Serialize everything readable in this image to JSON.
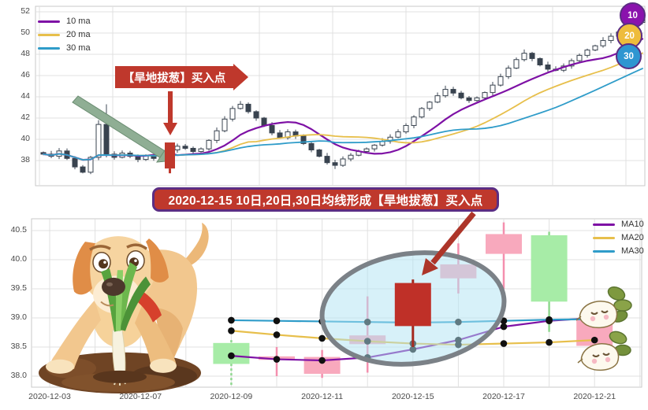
{
  "banner": {
    "text": "2020-12-15 10日,20日,30日均线形成【旱地拔葱】买入点"
  },
  "colors": {
    "ma10": "#7e11a5",
    "ma20": "#e7bf4b",
    "ma30": "#2f9cc9",
    "highlight_red": "#bf382c",
    "banner_border": "#5b2d83",
    "candle_up_pink": "#f8a9bd",
    "candle_down_green": "#a7eca7",
    "ellipse_stroke": "#7b8187",
    "green_arrow": "#8fae94"
  },
  "icons": {
    "dog_illustration": "dog-pulling-scallion-illustration",
    "radish_illustration": "radish-characters-illustration"
  },
  "chart_data": [
    {
      "type": "candlestick",
      "title": "",
      "legend_labels": [
        "10 ma",
        "20 ma",
        "30 ma"
      ],
      "y_ticks": [
        52,
        50,
        48,
        46,
        44,
        42,
        40,
        38
      ],
      "ylim": [
        35.7,
        52.4
      ],
      "grid": true,
      "annotation_text": "【旱地拔葱】买入点",
      "buy_point_index": 16,
      "ma_windows": [
        10,
        20,
        30
      ],
      "closes": [
        38.6,
        38.4,
        38.9,
        38.2,
        37.4,
        36.9,
        38.3,
        41.4,
        38.6,
        38.3,
        38.7,
        38.4,
        38.1,
        38.45,
        38.2,
        37.95,
        39.0,
        39.35,
        39.15,
        38.85,
        39.1,
        39.9,
        40.8,
        41.9,
        42.9,
        43.3,
        42.6,
        42.0,
        41.3,
        40.6,
        40.15,
        40.7,
        40.3,
        39.6,
        39.0,
        38.4,
        37.8,
        37.55,
        38.15,
        38.5,
        38.85,
        39.1,
        39.45,
        39.8,
        40.2,
        40.7,
        41.3,
        42.1,
        42.9,
        43.5,
        44.1,
        44.7,
        44.35,
        43.9,
        43.65,
        43.9,
        44.4,
        45.1,
        45.9,
        46.7,
        47.5,
        48.1,
        47.6,
        47.0,
        46.6,
        46.5,
        46.9,
        47.4,
        47.9,
        48.4,
        48.8,
        49.3,
        49.7,
        50.1,
        50.5,
        51.0,
        51.4
      ],
      "wick_overrides": {
        "7": {
          "h": 41.8
        },
        "8": {
          "h": 43.3,
          "l": 38.3
        },
        "16": {
          "l": 37.4
        },
        "25": {
          "h": 43.6
        },
        "37": {
          "l": 37.2
        },
        "51": {
          "h": 45.05
        },
        "61": {
          "h": 48.45
        }
      },
      "badges": [
        {
          "label": "10",
          "color": "#8a12ad"
        },
        {
          "label": "20",
          "color": "#eebc3c"
        },
        {
          "label": "30",
          "color": "#2e96d1"
        }
      ]
    },
    {
      "type": "candlestick",
      "title": "",
      "legend_labels": [
        "MA10",
        "MA20",
        "MA30"
      ],
      "y_ticks": [
        "40.5",
        "40.0",
        "39.5",
        "39.0",
        "38.5",
        "38.0"
      ],
      "ylim": [
        37.8,
        40.7
      ],
      "grid": true,
      "x_all_days": [
        "2020-12-03",
        "2020-12-04",
        "2020-12-07",
        "2020-12-08",
        "2020-12-09",
        "2020-12-10",
        "2020-12-11",
        "2020-12-14",
        "2020-12-15",
        "2020-12-16",
        "2020-12-17",
        "2020-12-18",
        "2020-12-21",
        "2020-12-22"
      ],
      "x_tick_labels": [
        "2020-12-03",
        "2020-12-07",
        "2020-12-09",
        "2020-12-11",
        "2020-12-15",
        "2020-12-17",
        "2020-12-21"
      ],
      "x_tick_day_indexes": [
        0,
        2,
        4,
        6,
        8,
        10,
        12
      ],
      "candles_start_day_index": 4,
      "candles": [
        {
          "date": "2020-12-09",
          "o": 38.57,
          "h": 38.62,
          "l": 37.85,
          "c": 38.21,
          "dir": "down"
        },
        {
          "date": "2020-12-10",
          "o": 38.28,
          "h": 38.5,
          "l": 38.0,
          "c": 38.34,
          "dir": "up"
        },
        {
          "date": "2020-12-11",
          "o": 38.04,
          "h": 38.45,
          "l": 37.97,
          "c": 38.33,
          "dir": "up"
        },
        {
          "date": "2020-12-14",
          "o": 38.55,
          "h": 39.37,
          "l": 38.06,
          "c": 38.7,
          "dir": "up"
        },
        {
          "date": "2020-12-15",
          "o": 38.86,
          "h": 39.66,
          "l": 38.5,
          "c": 39.6,
          "dir": "highlight"
        },
        {
          "date": "2020-12-16",
          "o": 39.68,
          "h": 40.28,
          "l": 39.42,
          "c": 39.92,
          "dir": "up"
        },
        {
          "date": "2020-12-17",
          "o": 40.1,
          "h": 40.64,
          "l": 39.5,
          "c": 40.44,
          "dir": "up"
        },
        {
          "date": "2020-12-18",
          "o": 40.42,
          "h": 40.48,
          "l": 38.76,
          "c": 39.28,
          "dir": "down"
        },
        {
          "date": "2020-12-21",
          "o": 38.52,
          "h": 39.05,
          "l": 38.35,
          "c": 39.0,
          "dir": "up"
        }
      ],
      "series": [
        {
          "name": "MA10",
          "values": [
            38.35,
            38.29,
            38.27,
            38.32,
            38.46,
            38.62,
            38.85,
            38.95,
            39.0
          ]
        },
        {
          "name": "MA20",
          "values": [
            38.78,
            38.71,
            38.65,
            38.6,
            38.56,
            38.54,
            38.56,
            38.58,
            38.62
          ]
        },
        {
          "name": "MA30",
          "values": [
            38.96,
            38.95,
            38.94,
            38.93,
            38.92,
            38.93,
            38.95,
            38.97,
            38.98
          ]
        }
      ],
      "ellipse_highlight_center_date": "2020-12-15"
    }
  ]
}
